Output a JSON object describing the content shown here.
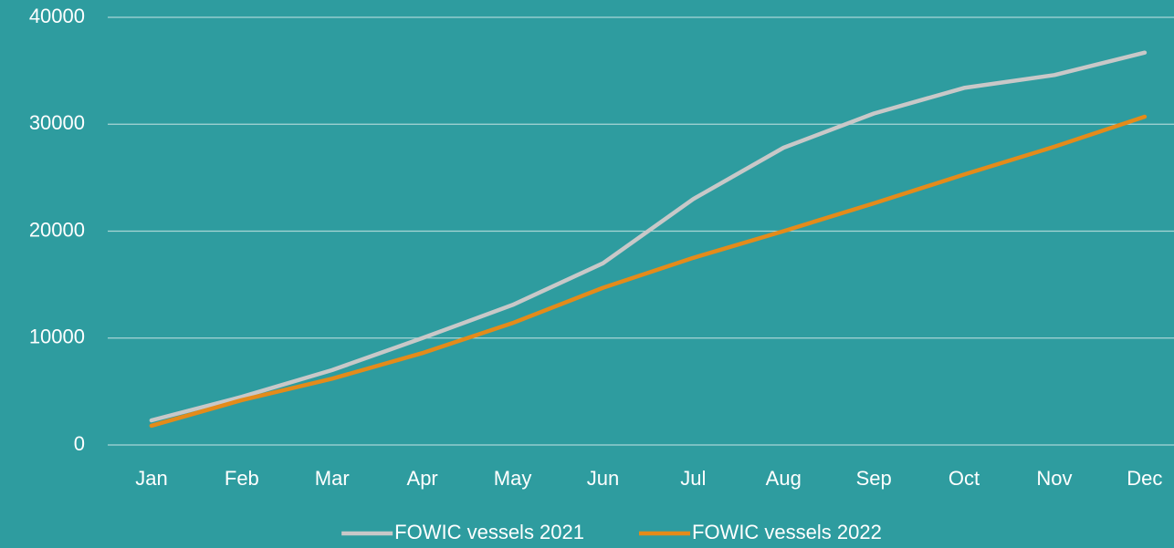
{
  "chart_data": {
    "type": "line",
    "categories": [
      "Jan",
      "Feb",
      "Mar",
      "Apr",
      "May",
      "Jun",
      "Jul",
      "Aug",
      "Sep",
      "Oct",
      "Nov",
      "Dec"
    ],
    "series": [
      {
        "name": "FOWIC vessels 2021",
        "color": "#c8c8c8",
        "values": [
          2300,
          4500,
          7000,
          10000,
          13100,
          17000,
          23000,
          27800,
          31000,
          33400,
          34600,
          36700
        ]
      },
      {
        "name": "FOWIC vessels 2022",
        "color": "#e48b1a",
        "values": [
          1800,
          4200,
          6200,
          8600,
          11400,
          14700,
          17500,
          20000,
          22600,
          25300,
          27900,
          30700
        ]
      }
    ],
    "ylim": [
      0,
      40000
    ],
    "yticks": [
      0,
      10000,
      20000,
      30000,
      40000
    ],
    "grid": true,
    "legend": "bottom"
  }
}
